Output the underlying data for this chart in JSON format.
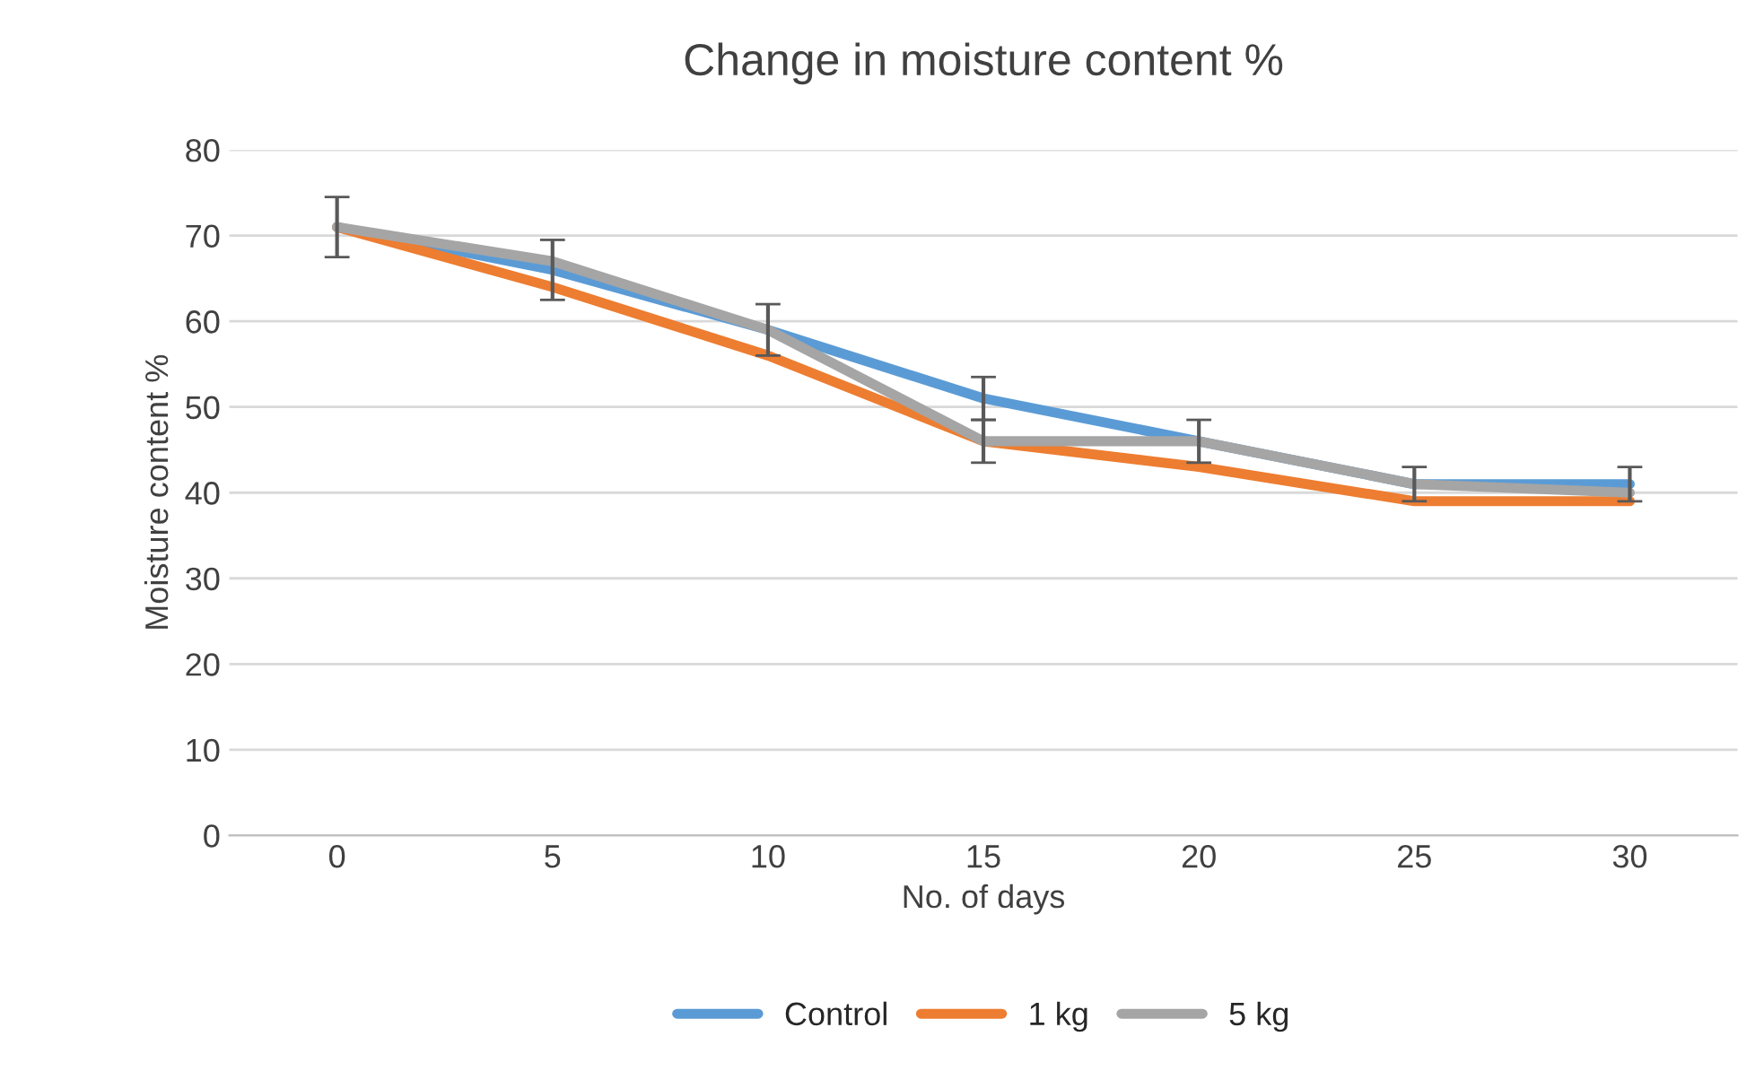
{
  "chart_data": {
    "type": "line",
    "title": "Change in moisture content %",
    "xlabel": "No. of days",
    "ylabel": "Moisture content %",
    "categories": [
      "0",
      "5",
      "10",
      "15",
      "20",
      "25",
      "30"
    ],
    "series": [
      {
        "name": "Control",
        "color": "#5b9bd5",
        "values": [
          71,
          66,
          59,
          51,
          46,
          41,
          41
        ],
        "errors": [
          3.5,
          3.5,
          3,
          2.5,
          2.5,
          2,
          2
        ]
      },
      {
        "name": "1 kg",
        "color": "#ed7d31",
        "values": [
          71,
          64,
          56,
          46,
          43,
          39,
          39
        ]
      },
      {
        "name": "5 kg",
        "color": "#a5a5a5",
        "values": [
          71,
          67,
          59,
          46,
          46,
          41,
          40
        ],
        "errors": [
          null,
          null,
          null,
          2.5,
          null,
          null,
          null
        ]
      }
    ],
    "ylim": [
      0,
      80
    ],
    "yticks": [
      0,
      10,
      20,
      30,
      40,
      50,
      60,
      70,
      80
    ],
    "grid": "y",
    "legend": "bottom",
    "marker": "none",
    "line_style": "solid"
  }
}
